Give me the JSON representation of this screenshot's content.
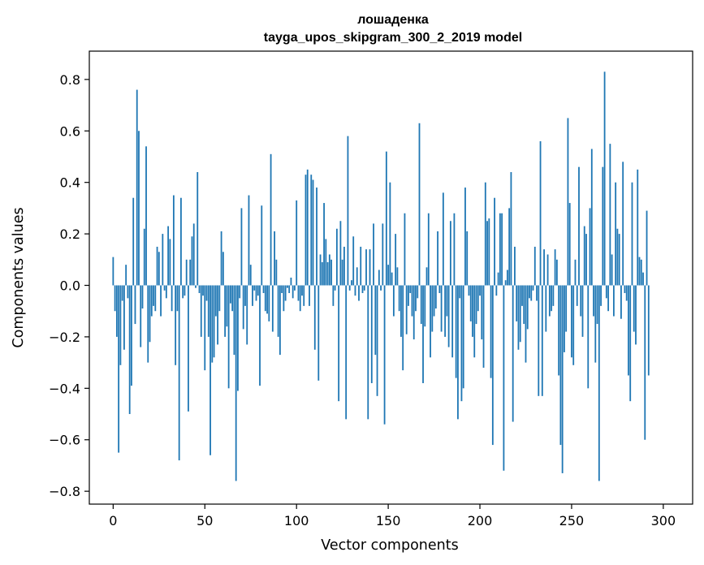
{
  "chart_data": {
    "type": "bar",
    "title": "лошаденка",
    "subtitle": "tayga_upos_skipgram_300_2_2019 model",
    "xlabel": "Vector components",
    "ylabel": "Components values",
    "xlim": [
      -13,
      316
    ],
    "ylim": [
      -0.85,
      0.91
    ],
    "xticks": [
      0,
      50,
      100,
      150,
      200,
      250,
      300
    ],
    "xtick_labels": [
      "0",
      "50",
      "100",
      "150",
      "200",
      "250",
      "300"
    ],
    "yticks": [
      -0.8,
      -0.6,
      -0.4,
      -0.2,
      0.0,
      0.2,
      0.4,
      0.6,
      0.8
    ],
    "ytick_labels": [
      "−0.8",
      "−0.6",
      "−0.4",
      "−0.2",
      "0.0",
      "0.2",
      "0.4",
      "0.6",
      "0.8"
    ],
    "bar_color": "#1f77b4",
    "grid": false,
    "values": [
      0.11,
      -0.1,
      -0.2,
      -0.65,
      -0.31,
      -0.06,
      -0.25,
      0.08,
      -0.05,
      -0.5,
      -0.39,
      0.34,
      -0.15,
      0.76,
      0.6,
      -0.24,
      -0.09,
      0.22,
      0.54,
      -0.3,
      -0.22,
      -0.12,
      -0.08,
      -0.1,
      0.15,
      0.13,
      -0.12,
      0.2,
      -0.02,
      -0.05,
      0.23,
      0.18,
      -0.1,
      0.35,
      -0.31,
      -0.1,
      -0.68,
      0.34,
      -0.05,
      -0.04,
      0.1,
      -0.49,
      0.1,
      0.19,
      0.24,
      -0.01,
      0.44,
      -0.03,
      -0.2,
      -0.04,
      -0.33,
      -0.06,
      -0.2,
      -0.66,
      -0.3,
      -0.28,
      -0.12,
      -0.23,
      -0.1,
      0.21,
      0.13,
      -0.2,
      -0.16,
      -0.4,
      -0.07,
      -0.1,
      -0.27,
      -0.76,
      -0.41,
      -0.05,
      0.3,
      -0.17,
      -0.08,
      -0.23,
      0.35,
      0.08,
      -0.08,
      -0.02,
      -0.06,
      -0.04,
      -0.39,
      0.31,
      -0.03,
      -0.1,
      -0.11,
      -0.14,
      0.51,
      -0.18,
      0.21,
      0.1,
      -0.2,
      -0.27,
      -0.03,
      -0.1,
      -0.06,
      -0.01,
      -0.03,
      0.03,
      -0.05,
      -0.02,
      0.33,
      -0.06,
      -0.1,
      -0.04,
      -0.08,
      0.43,
      0.45,
      -0.08,
      0.43,
      0.41,
      -0.25,
      0.38,
      -0.37,
      0.12,
      0.09,
      0.32,
      0.18,
      0.09,
      0.12,
      0.1,
      -0.08,
      -0.02,
      0.22,
      -0.45,
      0.25,
      0.1,
      0.15,
      -0.52,
      0.58,
      -0.02,
      0.02,
      0.19,
      -0.04,
      0.07,
      -0.06,
      0.15,
      -0.03,
      -0.02,
      0.14,
      -0.52,
      0.14,
      -0.38,
      0.24,
      -0.27,
      -0.43,
      0.06,
      -0.02,
      0.24,
      -0.54,
      0.52,
      0.08,
      0.4,
      0.05,
      -0.12,
      0.2,
      0.07,
      -0.1,
      -0.2,
      -0.33,
      0.28,
      -0.19,
      -0.08,
      -0.03,
      -0.12,
      -0.21,
      -0.1,
      -0.05,
      0.63,
      -0.15,
      -0.38,
      -0.16,
      0.07,
      0.28,
      -0.28,
      -0.18,
      -0.12,
      -0.09,
      0.21,
      -0.03,
      -0.18,
      0.36,
      -0.2,
      -0.12,
      -0.24,
      0.25,
      -0.28,
      0.28,
      -0.36,
      -0.52,
      -0.05,
      -0.45,
      -0.4,
      0.38,
      0.21,
      -0.04,
      -0.14,
      -0.2,
      -0.28,
      -0.15,
      -0.1,
      -0.04,
      -0.21,
      -0.32,
      0.4,
      0.25,
      0.26,
      -0.36,
      -0.62,
      0.34,
      -0.04,
      0.05,
      0.28,
      0.28,
      -0.72,
      0.02,
      0.06,
      0.3,
      0.44,
      -0.53,
      0.15,
      -0.14,
      -0.25,
      -0.22,
      -0.08,
      -0.15,
      -0.3,
      -0.17,
      -0.05,
      -0.06,
      -0.02,
      0.15,
      -0.06,
      -0.43,
      0.56,
      -0.43,
      0.14,
      -0.18,
      0.12,
      -0.12,
      -0.1,
      -0.08,
      0.14,
      0.1,
      -0.35,
      -0.62,
      -0.73,
      -0.26,
      -0.18,
      0.65,
      0.32,
      -0.28,
      -0.31,
      0.1,
      -0.08,
      0.46,
      -0.12,
      -0.2,
      0.23,
      0.2,
      -0.4,
      0.3,
      0.53,
      -0.12,
      -0.3,
      -0.15,
      -0.76,
      -0.08,
      0.46,
      0.83,
      -0.05,
      -0.1,
      0.55,
      0.12,
      -0.12,
      0.4,
      0.22,
      0.2,
      -0.13,
      0.48,
      -0.03,
      -0.06,
      -0.35,
      -0.45,
      0.4,
      -0.18,
      -0.23,
      0.45,
      0.11,
      0.1,
      0.05,
      -0.6,
      0.29,
      -0.35
    ]
  }
}
